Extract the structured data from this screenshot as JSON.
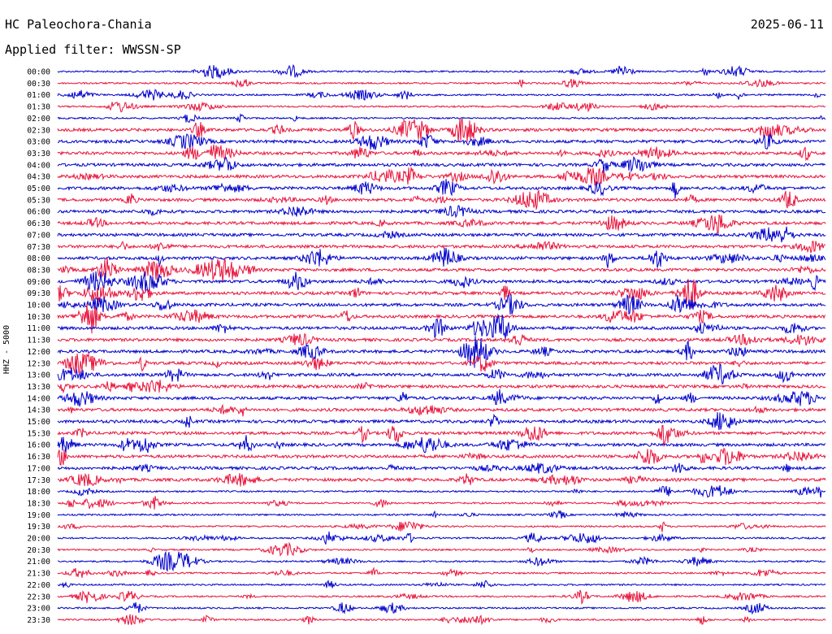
{
  "header": {
    "station": "HC Paleochora-Chania",
    "date": "2025-06-11",
    "filter": "Applied filter: WWSSN-SP",
    "channel_label": "HHZ - 5000"
  },
  "chart_data": {
    "type": "line",
    "title": "HC Paleochora-Chania",
    "subtitle": "Applied filter: WWSSN-SP",
    "date": "2025-06-11",
    "ylabel": "HHZ - 5000",
    "xlabel": "",
    "rows": [
      "00:00",
      "00:30",
      "01:00",
      "01:30",
      "02:00",
      "02:30",
      "03:00",
      "03:30",
      "04:00",
      "04:30",
      "05:00",
      "05:30",
      "06:00",
      "06:30",
      "07:00",
      "07:30",
      "08:00",
      "08:30",
      "09:00",
      "09:30",
      "10:00",
      "10:30",
      "11:00",
      "11:30",
      "12:00",
      "12:30",
      "13:00",
      "13:30",
      "14:00",
      "14:30",
      "15:00",
      "15:30",
      "16:00",
      "16:30",
      "17:00",
      "17:30",
      "18:00",
      "18:30",
      "19:00",
      "19:30",
      "20:00",
      "20:30",
      "21:00",
      "21:30",
      "22:00",
      "22:30",
      "23:00",
      "23:30"
    ],
    "row_minutes": 30,
    "colors": [
      "#0000cc",
      "#e8143c"
    ],
    "grid": false
  }
}
